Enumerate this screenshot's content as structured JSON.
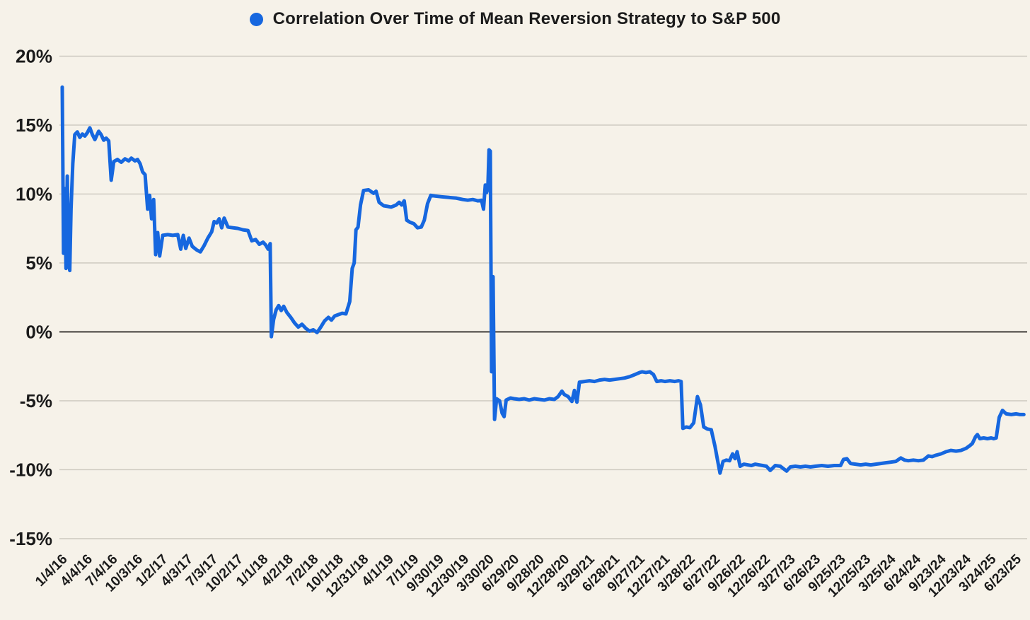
{
  "colors": {
    "background": "#F6F2E9",
    "line": "#1667DF",
    "grid_line": "#CBC7BE",
    "zero_line": "#55534E",
    "text": "#1B1B1B"
  },
  "chart_data": {
    "type": "line",
    "title": "Correlation Over Time of Mean Reversion Strategy to S&P 500",
    "legend": [
      {
        "label": "Correlation Over Time of Mean Reversion Strategy to S&P 500",
        "marker": "circle",
        "color": "#1667DF"
      }
    ],
    "grid": "horizontal",
    "y_axis": {
      "unit": "%",
      "range": [
        -15,
        20
      ],
      "tick_values": [
        20,
        15,
        10,
        5,
        0,
        -5,
        -10,
        -15
      ],
      "tick_labels": [
        "20%",
        "15%",
        "10%",
        "5%",
        "0%",
        "-5%",
        "-10%",
        "-15%"
      ]
    },
    "x_axis": {
      "label_rotation_deg": -45,
      "categories": [
        "1/4/16",
        "4/4/16",
        "7/4/16",
        "10/3/16",
        "1/2/17",
        "4/3/17",
        "7/3/17",
        "10/2/17",
        "1/1/18",
        "4/2/18",
        "7/2/18",
        "10/1/18",
        "12/31/18",
        "4/1/19",
        "7/1/19",
        "9/30/19",
        "12/30/19",
        "3/30/20",
        "6/29/20",
        "9/28/20",
        "12/28/20",
        "3/29/21",
        "6/28/21",
        "9/27/21",
        "12/27/21",
        "3/28/22",
        "6/27/22",
        "9/26/22",
        "12/26/22",
        "3/27/23",
        "6/26/23",
        "9/25/23",
        "12/25/23",
        "3/25/24",
        "6/24/24",
        "9/23/24",
        "12/23/24",
        "3/24/25",
        "6/23/25"
      ]
    },
    "series": [
      {
        "name": "Correlation Over Time of Mean Reversion Strategy to S&P 500",
        "color": "#1667DF",
        "x_unit": "category_index",
        "y_unit": "percent",
        "points": [
          [
            0,
            17.75
          ],
          [
            0.05,
            5.7
          ],
          [
            0.1,
            10.4
          ],
          [
            0.15,
            4.6
          ],
          [
            0.2,
            11.3
          ],
          [
            0.25,
            5.2
          ],
          [
            0.3,
            4.45
          ],
          [
            0.35,
            8.9
          ],
          [
            0.42,
            12.2
          ],
          [
            0.5,
            14.3
          ],
          [
            0.6,
            14.5
          ],
          [
            0.7,
            14.1
          ],
          [
            0.8,
            14.35
          ],
          [
            0.9,
            14.2
          ],
          [
            1.0,
            14.45
          ],
          [
            1.1,
            14.8
          ],
          [
            1.2,
            14.3
          ],
          [
            1.3,
            13.95
          ],
          [
            1.45,
            14.55
          ],
          [
            1.55,
            14.3
          ],
          [
            1.65,
            13.9
          ],
          [
            1.75,
            14.05
          ],
          [
            1.85,
            13.85
          ],
          [
            1.95,
            11.0
          ],
          [
            2.05,
            12.35
          ],
          [
            2.2,
            12.5
          ],
          [
            2.35,
            12.3
          ],
          [
            2.5,
            12.55
          ],
          [
            2.65,
            12.4
          ],
          [
            2.75,
            12.6
          ],
          [
            2.9,
            12.4
          ],
          [
            3.0,
            12.5
          ],
          [
            3.1,
            12.2
          ],
          [
            3.2,
            11.6
          ],
          [
            3.3,
            11.4
          ],
          [
            3.4,
            8.9
          ],
          [
            3.48,
            9.9
          ],
          [
            3.56,
            8.2
          ],
          [
            3.64,
            9.6
          ],
          [
            3.72,
            5.6
          ],
          [
            3.8,
            7.2
          ],
          [
            3.88,
            5.5
          ],
          [
            4.0,
            7.0
          ],
          [
            4.2,
            7.05
          ],
          [
            4.4,
            7.0
          ],
          [
            4.6,
            7.05
          ],
          [
            4.72,
            6.0
          ],
          [
            4.82,
            7.0
          ],
          [
            4.92,
            6.05
          ],
          [
            5.05,
            6.8
          ],
          [
            5.18,
            6.2
          ],
          [
            5.35,
            5.95
          ],
          [
            5.5,
            5.8
          ],
          [
            5.65,
            6.25
          ],
          [
            5.8,
            6.8
          ],
          [
            5.95,
            7.25
          ],
          [
            6.05,
            8.0
          ],
          [
            6.15,
            7.9
          ],
          [
            6.25,
            8.2
          ],
          [
            6.35,
            7.55
          ],
          [
            6.45,
            8.25
          ],
          [
            6.6,
            7.6
          ],
          [
            6.8,
            7.55
          ],
          [
            7.0,
            7.5
          ],
          [
            7.2,
            7.4
          ],
          [
            7.4,
            7.35
          ],
          [
            7.55,
            6.6
          ],
          [
            7.7,
            6.7
          ],
          [
            7.85,
            6.35
          ],
          [
            8.0,
            6.5
          ],
          [
            8.1,
            6.3
          ],
          [
            8.2,
            6.0
          ],
          [
            8.28,
            6.4
          ],
          [
            8.33,
            -0.35
          ],
          [
            8.42,
            0.9
          ],
          [
            8.52,
            1.6
          ],
          [
            8.62,
            1.9
          ],
          [
            8.72,
            1.55
          ],
          [
            8.82,
            1.85
          ],
          [
            8.95,
            1.4
          ],
          [
            9.1,
            1.05
          ],
          [
            9.25,
            0.65
          ],
          [
            9.4,
            0.35
          ],
          [
            9.55,
            0.55
          ],
          [
            9.7,
            0.25
          ],
          [
            9.85,
            0.05
          ],
          [
            10.0,
            0.15
          ],
          [
            10.15,
            -0.05
          ],
          [
            10.3,
            0.35
          ],
          [
            10.45,
            0.8
          ],
          [
            10.6,
            1.05
          ],
          [
            10.72,
            0.85
          ],
          [
            10.85,
            1.15
          ],
          [
            11.0,
            1.25
          ],
          [
            11.15,
            1.35
          ],
          [
            11.3,
            1.3
          ],
          [
            11.45,
            2.2
          ],
          [
            11.55,
            4.6
          ],
          [
            11.63,
            5.0
          ],
          [
            11.7,
            7.4
          ],
          [
            11.78,
            7.6
          ],
          [
            11.88,
            9.2
          ],
          [
            12.0,
            10.25
          ],
          [
            12.2,
            10.3
          ],
          [
            12.4,
            10.05
          ],
          [
            12.5,
            10.2
          ],
          [
            12.62,
            9.4
          ],
          [
            12.8,
            9.15
          ],
          [
            12.95,
            9.1
          ],
          [
            13.1,
            9.05
          ],
          [
            13.3,
            9.2
          ],
          [
            13.42,
            9.4
          ],
          [
            13.52,
            9.2
          ],
          [
            13.62,
            9.5
          ],
          [
            13.72,
            8.1
          ],
          [
            13.85,
            7.95
          ],
          [
            14.0,
            7.85
          ],
          [
            14.15,
            7.55
          ],
          [
            14.3,
            7.6
          ],
          [
            14.42,
            8.1
          ],
          [
            14.55,
            9.3
          ],
          [
            14.68,
            9.9
          ],
          [
            14.85,
            9.85
          ],
          [
            15.1,
            9.8
          ],
          [
            15.4,
            9.75
          ],
          [
            15.7,
            9.7
          ],
          [
            15.95,
            9.6
          ],
          [
            16.15,
            9.55
          ],
          [
            16.35,
            9.6
          ],
          [
            16.55,
            9.5
          ],
          [
            16.7,
            9.55
          ],
          [
            16.78,
            8.9
          ],
          [
            16.85,
            10.65
          ],
          [
            16.9,
            10.1
          ],
          [
            16.95,
            10.4
          ],
          [
            17.0,
            13.2
          ],
          [
            17.05,
            13.1
          ],
          [
            17.1,
            -2.9
          ],
          [
            17.16,
            4.0
          ],
          [
            17.22,
            -6.35
          ],
          [
            17.3,
            -4.85
          ],
          [
            17.42,
            -5.0
          ],
          [
            17.52,
            -5.9
          ],
          [
            17.6,
            -6.15
          ],
          [
            17.68,
            -4.95
          ],
          [
            17.85,
            -4.8
          ],
          [
            18.0,
            -4.85
          ],
          [
            18.2,
            -4.9
          ],
          [
            18.4,
            -4.85
          ],
          [
            18.6,
            -4.95
          ],
          [
            18.8,
            -4.85
          ],
          [
            19.0,
            -4.9
          ],
          [
            19.2,
            -4.95
          ],
          [
            19.4,
            -4.85
          ],
          [
            19.6,
            -4.9
          ],
          [
            19.75,
            -4.7
          ],
          [
            19.9,
            -4.3
          ],
          [
            20.0,
            -4.55
          ],
          [
            20.15,
            -4.7
          ],
          [
            20.3,
            -5.05
          ],
          [
            20.4,
            -4.25
          ],
          [
            20.5,
            -5.1
          ],
          [
            20.6,
            -3.65
          ],
          [
            20.8,
            -3.6
          ],
          [
            21.0,
            -3.55
          ],
          [
            21.2,
            -3.6
          ],
          [
            21.4,
            -3.5
          ],
          [
            21.6,
            -3.45
          ],
          [
            21.8,
            -3.5
          ],
          [
            22.0,
            -3.45
          ],
          [
            22.2,
            -3.4
          ],
          [
            22.4,
            -3.35
          ],
          [
            22.6,
            -3.25
          ],
          [
            22.8,
            -3.1
          ],
          [
            23.0,
            -2.95
          ],
          [
            23.1,
            -2.9
          ],
          [
            23.25,
            -2.95
          ],
          [
            23.4,
            -2.9
          ],
          [
            23.55,
            -3.1
          ],
          [
            23.68,
            -3.6
          ],
          [
            23.85,
            -3.55
          ],
          [
            24.0,
            -3.6
          ],
          [
            24.2,
            -3.55
          ],
          [
            24.4,
            -3.6
          ],
          [
            24.55,
            -3.55
          ],
          [
            24.65,
            -3.6
          ],
          [
            24.72,
            -7.0
          ],
          [
            24.85,
            -6.9
          ],
          [
            25.0,
            -6.95
          ],
          [
            25.15,
            -6.6
          ],
          [
            25.3,
            -4.7
          ],
          [
            25.42,
            -5.3
          ],
          [
            25.55,
            -6.9
          ],
          [
            25.7,
            -7.05
          ],
          [
            25.85,
            -7.1
          ],
          [
            26.0,
            -8.3
          ],
          [
            26.1,
            -9.3
          ],
          [
            26.2,
            -10.25
          ],
          [
            26.32,
            -9.4
          ],
          [
            26.45,
            -9.3
          ],
          [
            26.58,
            -9.35
          ],
          [
            26.7,
            -8.85
          ],
          [
            26.8,
            -9.2
          ],
          [
            26.88,
            -8.7
          ],
          [
            27.0,
            -9.75
          ],
          [
            27.15,
            -9.6
          ],
          [
            27.3,
            -9.65
          ],
          [
            27.45,
            -9.7
          ],
          [
            27.6,
            -9.6
          ],
          [
            27.75,
            -9.65
          ],
          [
            27.9,
            -9.7
          ],
          [
            28.05,
            -9.75
          ],
          [
            28.2,
            -10.05
          ],
          [
            28.4,
            -9.7
          ],
          [
            28.6,
            -9.75
          ],
          [
            28.85,
            -10.1
          ],
          [
            29.0,
            -9.8
          ],
          [
            29.2,
            -9.75
          ],
          [
            29.4,
            -9.8
          ],
          [
            29.6,
            -9.75
          ],
          [
            29.8,
            -9.8
          ],
          [
            30.0,
            -9.75
          ],
          [
            30.25,
            -9.7
          ],
          [
            30.5,
            -9.75
          ],
          [
            30.75,
            -9.7
          ],
          [
            31.0,
            -9.7
          ],
          [
            31.12,
            -9.25
          ],
          [
            31.25,
            -9.2
          ],
          [
            31.4,
            -9.55
          ],
          [
            31.6,
            -9.6
          ],
          [
            31.8,
            -9.65
          ],
          [
            32.0,
            -9.6
          ],
          [
            32.2,
            -9.65
          ],
          [
            32.4,
            -9.6
          ],
          [
            32.6,
            -9.55
          ],
          [
            32.8,
            -9.5
          ],
          [
            33.0,
            -9.45
          ],
          [
            33.2,
            -9.4
          ],
          [
            33.4,
            -9.15
          ],
          [
            33.55,
            -9.3
          ],
          [
            33.7,
            -9.35
          ],
          [
            33.9,
            -9.3
          ],
          [
            34.1,
            -9.35
          ],
          [
            34.3,
            -9.3
          ],
          [
            34.5,
            -9.0
          ],
          [
            34.65,
            -9.05
          ],
          [
            34.8,
            -8.95
          ],
          [
            35.0,
            -8.85
          ],
          [
            35.2,
            -8.7
          ],
          [
            35.4,
            -8.6
          ],
          [
            35.6,
            -8.65
          ],
          [
            35.8,
            -8.6
          ],
          [
            36.0,
            -8.45
          ],
          [
            36.15,
            -8.25
          ],
          [
            36.25,
            -8.1
          ],
          [
            36.38,
            -7.6
          ],
          [
            36.45,
            -7.45
          ],
          [
            36.55,
            -7.75
          ],
          [
            36.7,
            -7.7
          ],
          [
            36.85,
            -7.75
          ],
          [
            37.0,
            -7.7
          ],
          [
            37.1,
            -7.75
          ],
          [
            37.2,
            -7.7
          ],
          [
            37.32,
            -6.2
          ],
          [
            37.45,
            -5.7
          ],
          [
            37.6,
            -5.95
          ],
          [
            37.8,
            -6.0
          ],
          [
            38.0,
            -5.95
          ],
          [
            38.15,
            -6.0
          ],
          [
            38.3,
            -6.0
          ]
        ]
      }
    ]
  }
}
